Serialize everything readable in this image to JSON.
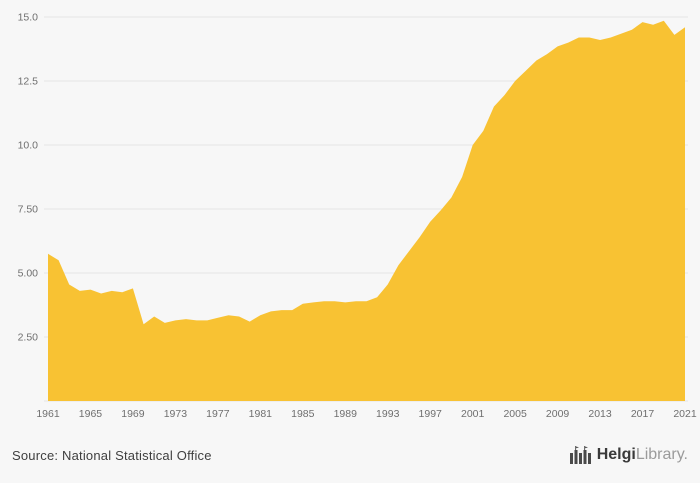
{
  "chart_data": {
    "type": "area",
    "title": "",
    "xlabel": "",
    "ylabel": "",
    "color": "#F8C233",
    "grid": true,
    "xlim": [
      1961,
      2021
    ],
    "ylim": [
      0,
      15
    ],
    "x_ticks": [
      1961,
      1965,
      1969,
      1973,
      1977,
      1981,
      1985,
      1989,
      1993,
      1997,
      2001,
      2005,
      2009,
      2013,
      2017,
      2021
    ],
    "y_ticks": [
      {
        "v": 2.5,
        "label": "2.50"
      },
      {
        "v": 5.0,
        "label": "5.00"
      },
      {
        "v": 7.5,
        "label": "7.50"
      },
      {
        "v": 10.0,
        "label": "10.0"
      },
      {
        "v": 12.5,
        "label": "12.5"
      },
      {
        "v": 15.0,
        "label": "15.0"
      }
    ],
    "x": [
      1961,
      1962,
      1963,
      1964,
      1965,
      1966,
      1967,
      1968,
      1969,
      1970,
      1971,
      1972,
      1973,
      1974,
      1975,
      1976,
      1977,
      1978,
      1979,
      1980,
      1981,
      1982,
      1983,
      1984,
      1985,
      1986,
      1987,
      1988,
      1989,
      1990,
      1991,
      1992,
      1993,
      1994,
      1995,
      1996,
      1997,
      1998,
      1999,
      2000,
      2001,
      2002,
      2003,
      2004,
      2005,
      2006,
      2007,
      2008,
      2009,
      2010,
      2011,
      2012,
      2013,
      2014,
      2015,
      2016,
      2017,
      2018,
      2019,
      2020,
      2021
    ],
    "values": [
      5.75,
      5.5,
      4.55,
      4.3,
      4.35,
      4.2,
      4.3,
      4.25,
      4.4,
      3.0,
      3.3,
      3.05,
      3.15,
      3.2,
      3.15,
      3.15,
      3.25,
      3.35,
      3.3,
      3.1,
      3.35,
      3.5,
      3.55,
      3.55,
      3.8,
      3.85,
      3.9,
      3.9,
      3.85,
      3.9,
      3.9,
      4.05,
      4.55,
      5.3,
      5.85,
      6.4,
      7.0,
      7.45,
      7.95,
      8.75,
      10.0,
      10.55,
      11.5,
      11.95,
      12.5,
      12.9,
      13.3,
      13.55,
      13.85,
      14.0,
      14.2,
      14.2,
      14.1,
      14.2,
      14.35,
      14.5,
      14.8,
      14.7,
      14.85,
      14.3,
      14.6
    ]
  },
  "footer": {
    "source": "Source: National Statistical Office",
    "brand": {
      "name_bold": "Helgi",
      "name_light": "Library."
    }
  }
}
